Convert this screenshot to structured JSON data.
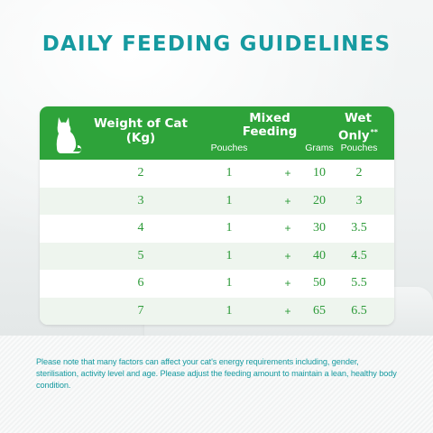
{
  "title": "DAILY FEEDING GUIDELINES",
  "table": {
    "header": {
      "weight_line1": "Weight of Cat",
      "weight_line2": "(Kg)",
      "mixed_line1": "Mixed",
      "mixed_line2": "Feeding",
      "wet_line1": "Wet",
      "wet_line2": "Only",
      "wet_marker": "**",
      "sub_pouches": "Pouches",
      "sub_grams": "Grams",
      "sub_wet_pouches": "Pouches"
    },
    "plus_sign": "+",
    "rows": [
      {
        "weight": "2",
        "pouches": "1",
        "grams": "10",
        "wet": "2"
      },
      {
        "weight": "3",
        "pouches": "1",
        "grams": "20",
        "wet": "3"
      },
      {
        "weight": "4",
        "pouches": "1",
        "grams": "30",
        "wet": "3.5"
      },
      {
        "weight": "5",
        "pouches": "1",
        "grams": "40",
        "wet": "4.5"
      },
      {
        "weight": "6",
        "pouches": "1",
        "grams": "50",
        "wet": "5.5"
      },
      {
        "weight": "7",
        "pouches": "1",
        "grams": "65",
        "wet": "6.5"
      }
    ]
  },
  "footnote": "Please note that many factors can affect your cat's energy requirements including, gender, sterilisation, activity level and age. Please adjust the feeding amount to maintain a lean, healthy body condition.",
  "icons": {
    "cat": "cat-silhouette-icon"
  },
  "colors": {
    "title": "#169aa0",
    "header_bg": "#2ea33a",
    "body_text": "#2c9a38",
    "row_alt": "#eef5ee"
  }
}
